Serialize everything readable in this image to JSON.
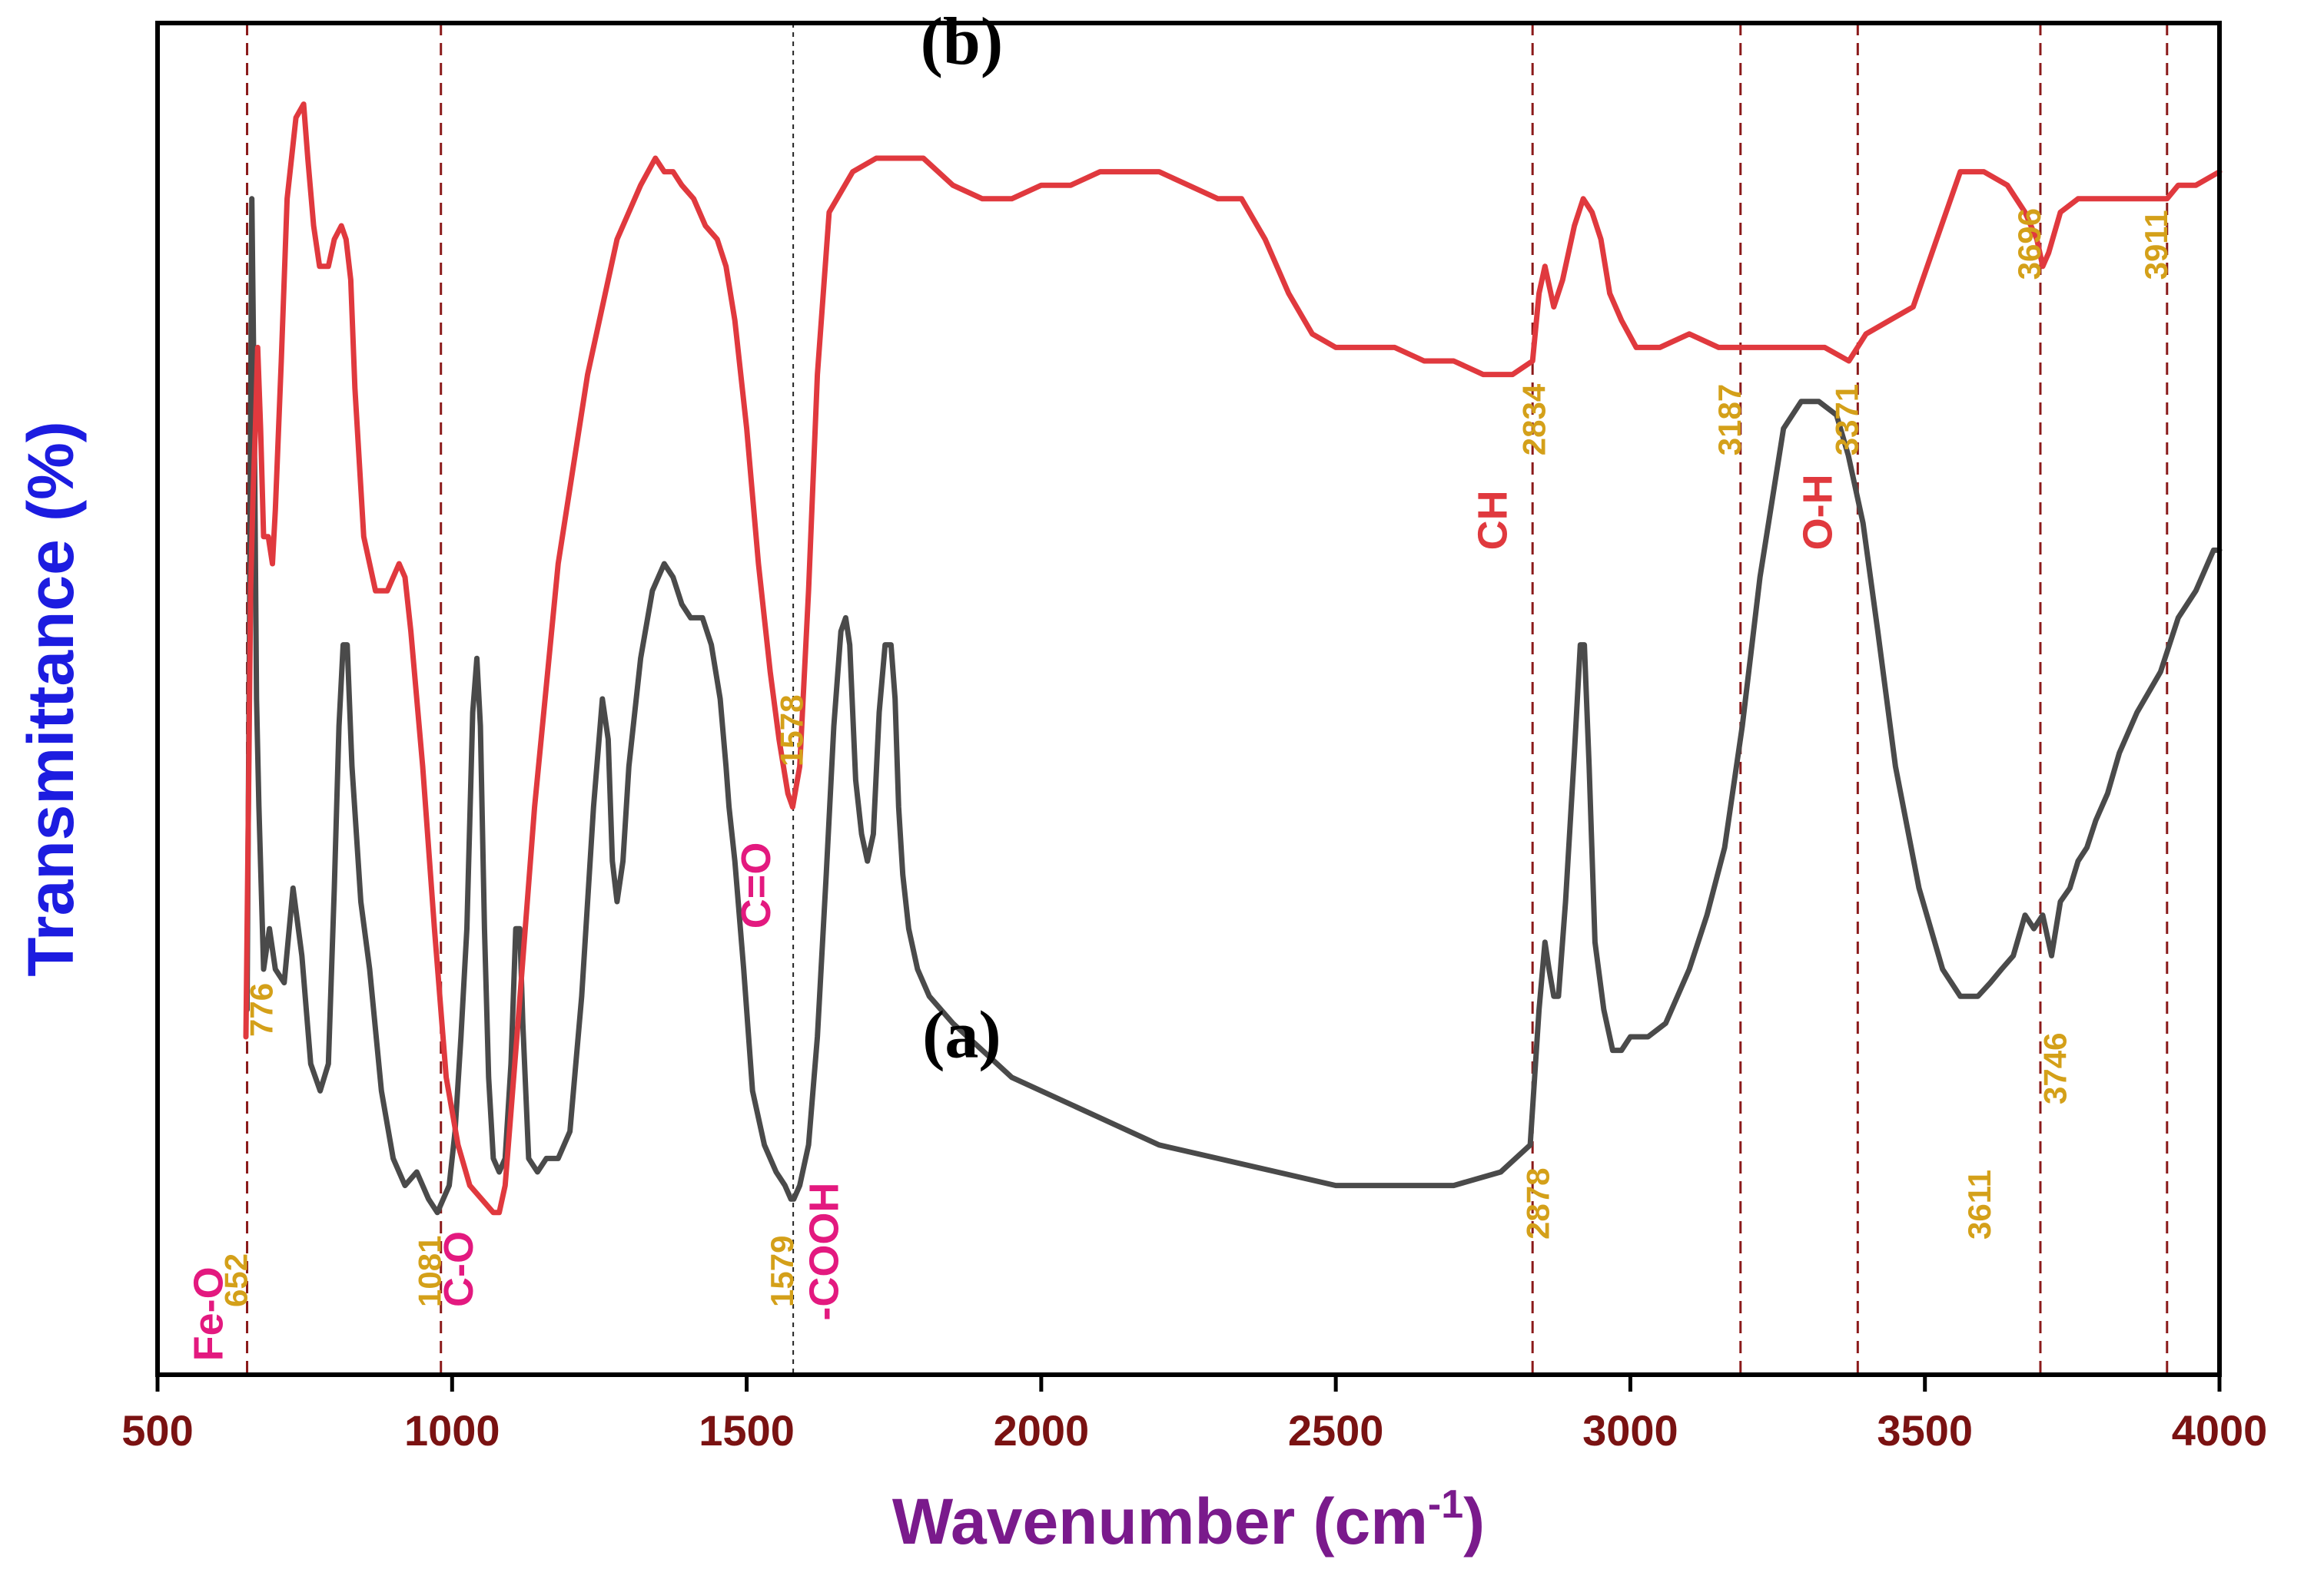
{
  "chart_data": {
    "type": "line",
    "xlabel": "Wavenumber (cm",
    "xlabel_sup": "-1",
    "xlabel_close": ")",
    "ylabel": "Transmittance (%)",
    "xlim": [
      500,
      4000
    ],
    "ylim": [
      0,
      100
    ],
    "xticks": [
      500,
      1000,
      1500,
      2000,
      2500,
      3000,
      3500,
      4000
    ],
    "colors": {
      "axis": "#000000",
      "tick_label": "#7a1212",
      "xlabel": "#7a1a8c",
      "ylabel": "#1c1ce0",
      "ref_line": "#8b1a1a",
      "peak_label": "#d4a019",
      "group_label": "#e3197f",
      "group_label_alt": "#e0393e"
    },
    "series": [
      {
        "name": "(a)",
        "color": "#4a4a4a",
        "x": [
          652,
          656,
          660,
          664,
          668,
          672,
          680,
          690,
          700,
          715,
          730,
          745,
          760,
          776,
          790,
          800,
          808,
          815,
          822,
          830,
          845,
          860,
          880,
          900,
          920,
          940,
          960,
          975,
          985,
          995,
          1005,
          1015,
          1025,
          1035,
          1042,
          1048,
          1055,
          1062,
          1070,
          1080,
          1090,
          1100,
          1108,
          1115,
          1120,
          1130,
          1145,
          1160,
          1180,
          1200,
          1220,
          1240,
          1255,
          1265,
          1272,
          1280,
          1290,
          1300,
          1320,
          1340,
          1360,
          1375,
          1390,
          1405,
          1415,
          1425,
          1440,
          1455,
          1465,
          1470,
          1480,
          1495,
          1510,
          1530,
          1550,
          1565,
          1575,
          1580,
          1590,
          1605,
          1620,
          1635,
          1648,
          1660,
          1668,
          1675,
          1685,
          1695,
          1705,
          1715,
          1725,
          1735,
          1745,
          1752,
          1758,
          1765,
          1775,
          1790,
          1810,
          1850,
          1900,
          1950,
          2000,
          2100,
          2200,
          2300,
          2400,
          2500,
          2600,
          2700,
          2780,
          2830,
          2845,
          2855,
          2862,
          2870,
          2878,
          2890,
          2905,
          2915,
          2922,
          2930,
          2940,
          2955,
          2970,
          2985,
          3000,
          3030,
          3060,
          3100,
          3130,
          3160,
          3190,
          3220,
          3260,
          3290,
          3320,
          3350,
          3370,
          3395,
          3420,
          3450,
          3490,
          3530,
          3560,
          3590,
          3611,
          3630,
          3650,
          3670,
          3685,
          3700,
          3715,
          3730,
          3746,
          3760,
          3775,
          3790,
          3810,
          3830,
          3860,
          3900,
          3930,
          3960,
          3990,
          4000
        ],
        "y": [
          27,
          55,
          87,
          72,
          50,
          42,
          30,
          33,
          30,
          29,
          36,
          31,
          23,
          21,
          23,
          36,
          48,
          54,
          54,
          45,
          35,
          30,
          21,
          16,
          14,
          15,
          13,
          12,
          13,
          14,
          18,
          25,
          33,
          49,
          53,
          48,
          33,
          22,
          16,
          15,
          16,
          23,
          33,
          33,
          26,
          16,
          15,
          16,
          16,
          18,
          28,
          42,
          50,
          47,
          38,
          35,
          38,
          45,
          53,
          58,
          60,
          59,
          57,
          56,
          56,
          56,
          54,
          50,
          45,
          42,
          38,
          30,
          21,
          17,
          15,
          14,
          13,
          13,
          14,
          17,
          25,
          37,
          48,
          55,
          56,
          54,
          44,
          40,
          38,
          40,
          49,
          54,
          54,
          50,
          42,
          37,
          33,
          30,
          28,
          26,
          24,
          22,
          21,
          19,
          17,
          16,
          15,
          14,
          14,
          14,
          15,
          17,
          27,
          32,
          30,
          28,
          28,
          35,
          46,
          54,
          54,
          45,
          32,
          27,
          24,
          24,
          25,
          25,
          26,
          30,
          34,
          39,
          48,
          59,
          70,
          72,
          72,
          71,
          68,
          63,
          55,
          45,
          36,
          30,
          28,
          28,
          29,
          30,
          31,
          34,
          33,
          34,
          31,
          35,
          36,
          38,
          39,
          41,
          43,
          46,
          49,
          52,
          56,
          58,
          61,
          61
        ]
      },
      {
        "name": "(b)",
        "color": "#e0393e",
        "x": [
          650,
          655,
          658,
          662,
          666,
          670,
          675,
          680,
          688,
          695,
          700,
          710,
          720,
          735,
          748,
          755,
          765,
          775,
          790,
          800,
          812,
          820,
          828,
          835,
          850,
          870,
          890,
          910,
          920,
          930,
          950,
          970,
          990,
          1010,
          1030,
          1050,
          1070,
          1080,
          1090,
          1110,
          1140,
          1180,
          1230,
          1280,
          1320,
          1345,
          1360,
          1375,
          1390,
          1410,
          1430,
          1450,
          1465,
          1480,
          1500,
          1520,
          1540,
          1555,
          1570,
          1578,
          1590,
          1605,
          1620,
          1640,
          1680,
          1720,
          1760,
          1800,
          1850,
          1900,
          1950,
          2000,
          2050,
          2100,
          2150,
          2200,
          2250,
          2300,
          2340,
          2380,
          2420,
          2460,
          2500,
          2550,
          2600,
          2650,
          2700,
          2750,
          2800,
          2834,
          2845,
          2855,
          2870,
          2885,
          2905,
          2920,
          2935,
          2950,
          2965,
          2985,
          3010,
          3050,
          3100,
          3150,
          3187,
          3230,
          3280,
          3330,
          3371,
          3400,
          3440,
          3480,
          3520,
          3560,
          3600,
          3640,
          3670,
          3690,
          3700,
          3710,
          3730,
          3760,
          3800,
          3840,
          3880,
          3911,
          3930,
          3960,
          4000
        ],
        "y": [
          25,
          45,
          58,
          65,
          70,
          76,
          70,
          62,
          62,
          60,
          64,
          75,
          87,
          93,
          94,
          90,
          85,
          82,
          82,
          84,
          85,
          84,
          81,
          73,
          62,
          58,
          58,
          60,
          59,
          55,
          45,
          33,
          22,
          17,
          14,
          13,
          12,
          12,
          14,
          25,
          42,
          60,
          74,
          84,
          88,
          90,
          89,
          89,
          88,
          87,
          85,
          84,
          82,
          78,
          70,
          60,
          52,
          47,
          43,
          42,
          45,
          58,
          74,
          86,
          89,
          90,
          90,
          90,
          88,
          87,
          87,
          88,
          88,
          89,
          89,
          89,
          88,
          87,
          87,
          84,
          80,
          77,
          76,
          76,
          76,
          75,
          75,
          74,
          74,
          75,
          80,
          82,
          79,
          81,
          85,
          87,
          86,
          84,
          80,
          78,
          76,
          76,
          77,
          76,
          76,
          76,
          76,
          76,
          75,
          77,
          78,
          79,
          84,
          89,
          89,
          88,
          86,
          84,
          82,
          83,
          86,
          87,
          87,
          87,
          87,
          87,
          88,
          88,
          89
        ]
      }
    ],
    "series_labels": [
      {
        "series": "(a)",
        "text": "(a)",
        "x": 1865,
        "y": 23.5
      },
      {
        "series": "(b)",
        "text": "(b)",
        "x": 1865,
        "y": 97
      }
    ],
    "reference_lines": [
      {
        "x": 652,
        "style": "dash"
      },
      {
        "x": 981,
        "style": "dash"
      },
      {
        "x": 1579,
        "style": "dot"
      },
      {
        "x": 2834,
        "style": "dash"
      },
      {
        "x": 3187,
        "style": "dash"
      },
      {
        "x": 3386,
        "style": "dash"
      },
      {
        "x": 3696,
        "style": "dash"
      },
      {
        "x": 3911,
        "style": "dash"
      }
    ],
    "peak_labels": [
      {
        "text": "652",
        "x": 652,
        "y": 5,
        "color_key": "peak_label"
      },
      {
        "text": "776",
        "x": 695,
        "y": 25,
        "color_key": "peak_label"
      },
      {
        "text": "1081",
        "x": 981,
        "y": 5,
        "color_key": "peak_label"
      },
      {
        "text": "1579",
        "x": 1579,
        "y": 5,
        "color_key": "peak_label"
      },
      {
        "text": "1578",
        "x": 1595,
        "y": 45,
        "color_key": "peak_label"
      },
      {
        "text": "2878",
        "x": 2862,
        "y": 10,
        "color_key": "peak_label"
      },
      {
        "text": "2834",
        "x": 2855,
        "y": 68,
        "color_key": "peak_label"
      },
      {
        "text": "3187",
        "x": 3187,
        "y": 68,
        "color_key": "peak_label"
      },
      {
        "text": "3371",
        "x": 3386,
        "y": 68,
        "color_key": "peak_label"
      },
      {
        "text": "3611",
        "x": 3611,
        "y": 10,
        "color_key": "peak_label"
      },
      {
        "text": "3746",
        "x": 3740,
        "y": 20,
        "color_key": "peak_label"
      },
      {
        "text": "3696",
        "x": 3696,
        "y": 81,
        "color_key": "peak_label"
      },
      {
        "text": "3911",
        "x": 3911,
        "y": 81,
        "color_key": "peak_label"
      }
    ],
    "group_labels": [
      {
        "text": "Fe-O",
        "x": 610,
        "y": 1,
        "color_key": "group_label"
      },
      {
        "text": "C-O",
        "x": 1035,
        "y": 5,
        "color_key": "group_label"
      },
      {
        "text": "C=O",
        "x": 1540,
        "y": 33,
        "color_key": "group_label"
      },
      {
        "text": "-COOH",
        "x": 1655,
        "y": 4,
        "color_key": "group_label"
      },
      {
        "text": "CH",
        "x": 2790,
        "y": 61,
        "color_key": "group_label_alt"
      },
      {
        "text": "O-H",
        "x": 3342,
        "y": 61,
        "color_key": "group_label_alt"
      }
    ]
  }
}
